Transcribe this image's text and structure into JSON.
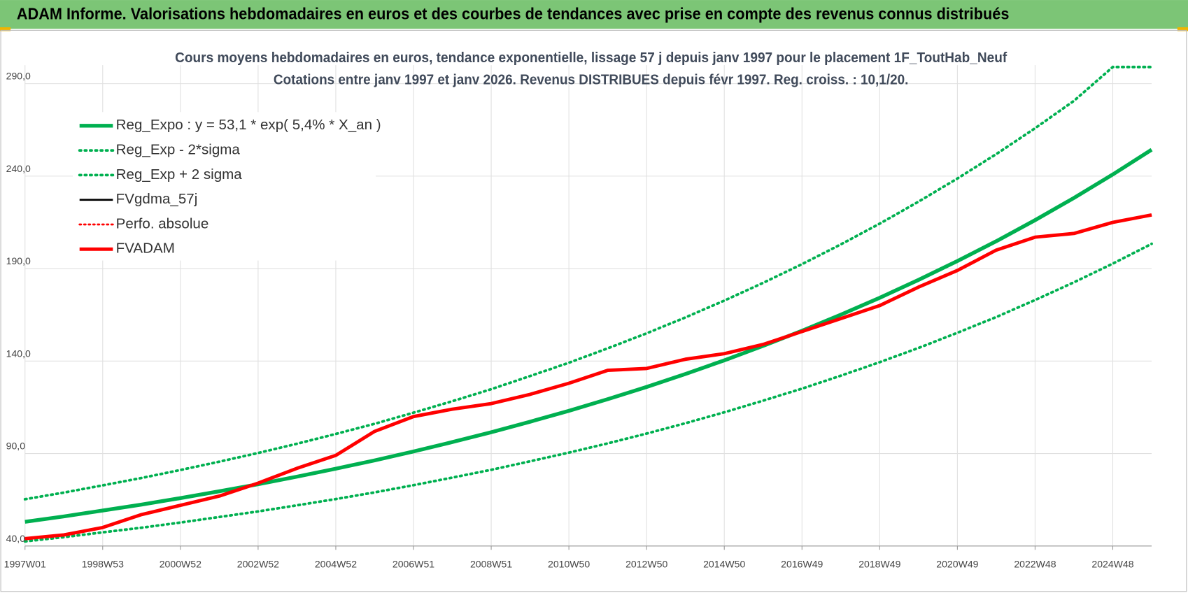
{
  "header": {
    "title": "ADAM Informe. Valorisations hebdomadaires en euros et des courbes de tendances avec prise en compte des revenus connus distribués"
  },
  "chart_data": {
    "type": "line",
    "title": "Cours moyens hebdomadaires en euros, tendance exponentielle, lissage 57 j depuis janv 1997 pour le placement 1F_ToutHab_Neuf",
    "subtitle": "Cotations entre janv 1997 et janv 2026. Revenus DISTRIBUES depuis févr 1997. Reg. croiss. : 10,1/20.",
    "x": [
      1997,
      1998,
      1999,
      2000,
      2001,
      2002,
      2003,
      2004,
      2005,
      2006,
      2007,
      2008,
      2009,
      2010,
      2011,
      2012,
      2013,
      2014,
      2015,
      2016,
      2017,
      2018,
      2019,
      2020,
      2021,
      2022,
      2023,
      2024,
      2025,
      2026
    ],
    "xlim": [
      1997,
      2026
    ],
    "xticks": [
      {
        "value": 1997,
        "label": "1997W01"
      },
      {
        "value": 1999,
        "label": "1998W53"
      },
      {
        "value": 2001,
        "label": "2000W52"
      },
      {
        "value": 2003,
        "label": "2002W52"
      },
      {
        "value": 2005,
        "label": "2004W52"
      },
      {
        "value": 2007,
        "label": "2006W51"
      },
      {
        "value": 2009,
        "label": "2008W51"
      },
      {
        "value": 2011,
        "label": "2010W50"
      },
      {
        "value": 2013,
        "label": "2012W50"
      },
      {
        "value": 2015,
        "label": "2014W50"
      },
      {
        "value": 2017,
        "label": "2016W49"
      },
      {
        "value": 2019,
        "label": "2018W49"
      },
      {
        "value": 2021,
        "label": "2020W49"
      },
      {
        "value": 2023,
        "label": "2022W48"
      },
      {
        "value": 2025,
        "label": "2024W48"
      }
    ],
    "ylim": [
      40,
      300
    ],
    "yticks": [
      {
        "value": 40,
        "label": "40,0"
      },
      {
        "value": 90,
        "label": "90,0"
      },
      {
        "value": 140,
        "label": "140,0"
      },
      {
        "value": 190,
        "label": "190,0"
      },
      {
        "value": 240,
        "label": "240,0"
      },
      {
        "value": 290,
        "label": "290,0"
      }
    ],
    "grid": true,
    "legend": "top-left",
    "series": [
      {
        "name": "Reg_Expo : y = 53,1 * exp( 5,4% *  X_an )",
        "color": "#00b050",
        "style": "solid",
        "values": [
          53.1,
          56.0,
          59.2,
          62.4,
          65.9,
          69.6,
          73.4,
          77.5,
          81.8,
          86.3,
          91.1,
          96.2,
          101.5,
          107.2,
          113.1,
          119.4,
          126.0,
          133.0,
          140.4,
          148.2,
          156.4,
          165.1,
          174.2,
          183.9,
          194.1,
          204.8,
          216.2,
          228.2,
          240.9,
          254.3
        ]
      },
      {
        "name": "Reg_Exp - 2*sigma",
        "color": "#00b050",
        "style": "dotted",
        "values": [
          42.5,
          44.8,
          47.4,
          49.9,
          52.7,
          55.7,
          58.7,
          62.0,
          65.4,
          69.0,
          72.9,
          77.0,
          81.2,
          85.8,
          90.5,
          95.5,
          100.8,
          106.4,
          112.3,
          118.6,
          125.1,
          132.1,
          139.4,
          147.1,
          155.3,
          163.8,
          173.0,
          182.6,
          192.7,
          203.4
        ]
      },
      {
        "name": "Reg_Exp + 2 sigma",
        "color": "#00b050",
        "style": "dotted",
        "values": [
          65.3,
          68.9,
          72.8,
          76.8,
          81.1,
          85.6,
          90.3,
          95.3,
          100.6,
          106.1,
          112.1,
          118.3,
          124.8,
          131.9,
          139.1,
          146.9,
          155.0,
          163.6,
          172.7,
          182.3,
          192.4,
          203.1,
          214.3,
          226.2,
          238.7,
          251.9,
          265.9,
          280.7,
          299,
          299
        ]
      },
      {
        "name": "FVgdma_57j",
        "color": "#000000",
        "style": "thin",
        "values": [
          44,
          46,
          50,
          57,
          62,
          67,
          74,
          82,
          89,
          102,
          110,
          114,
          117,
          122,
          128,
          135,
          136,
          141,
          144,
          149,
          156,
          163,
          170,
          180,
          189,
          200,
          207,
          209,
          215,
          219
        ]
      },
      {
        "name": "Perfo. absolue",
        "color": "#ff0000",
        "style": "dotted-thin",
        "values": [
          44,
          46,
          50,
          57,
          62,
          67,
          74,
          82,
          89,
          102,
          110,
          114,
          117,
          122,
          128,
          135,
          136,
          141,
          144,
          149,
          156,
          163,
          170,
          180,
          189,
          200,
          207,
          209,
          215,
          219
        ]
      },
      {
        "name": "FVADAM",
        "color": "#ff0000",
        "style": "bold",
        "values": [
          44,
          46,
          50,
          57,
          62,
          67,
          74,
          82,
          89,
          102,
          110,
          114,
          117,
          122,
          128,
          135,
          136,
          141,
          144,
          149,
          156,
          163,
          170,
          180,
          189,
          200,
          207,
          209,
          215,
          219
        ]
      }
    ]
  }
}
